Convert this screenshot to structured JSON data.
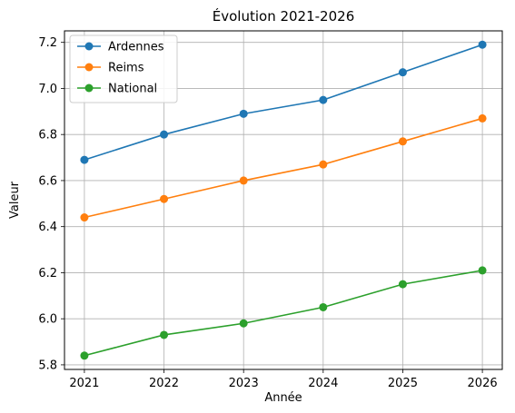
{
  "chart_data": {
    "type": "line",
    "title": "Évolution 2021-2026",
    "xlabel": "Année",
    "ylabel": "Valeur",
    "x": [
      2021,
      2022,
      2023,
      2024,
      2025,
      2026
    ],
    "xlim": [
      2020.75,
      2026.25
    ],
    "ylim": [
      5.78,
      7.25
    ],
    "yticks": [
      5.8,
      6.0,
      6.2,
      6.4,
      6.6,
      6.8,
      7.0,
      7.2
    ],
    "ytick_labels": [
      "5.8",
      "6.0",
      "6.2",
      "6.4",
      "6.6",
      "6.8",
      "7.0",
      "7.2"
    ],
    "xtick_labels": [
      "2021",
      "2022",
      "2023",
      "2024",
      "2025",
      "2026"
    ],
    "grid": true,
    "legend_position": "top-left",
    "series": [
      {
        "name": "Ardennes",
        "color": "#1f77b4",
        "values": [
          6.69,
          6.8,
          6.89,
          6.95,
          7.07,
          7.19
        ]
      },
      {
        "name": "Reims",
        "color": "#ff7f0e",
        "values": [
          6.44,
          6.52,
          6.6,
          6.67,
          6.77,
          6.87
        ]
      },
      {
        "name": "National",
        "color": "#2ca02c",
        "values": [
          5.84,
          5.93,
          5.98,
          6.05,
          6.15,
          6.21
        ]
      }
    ]
  }
}
